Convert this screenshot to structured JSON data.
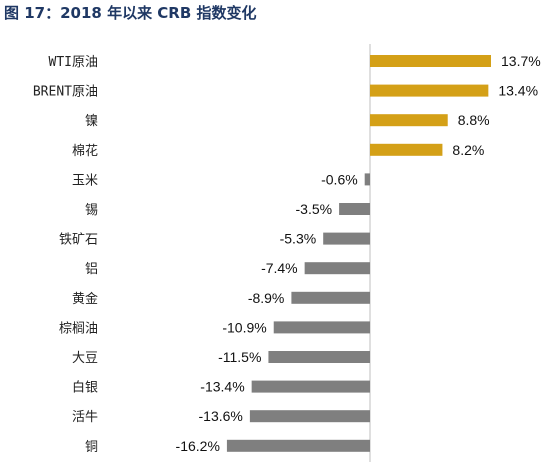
{
  "title": "图 17：2018 年以来 CRB 指数变化",
  "colors": {
    "positive": "#d4a017",
    "negative": "#7f7f7f",
    "axis": "#bfbfbf",
    "title": "#1f3864"
  },
  "chart_data": {
    "type": "bar",
    "orientation": "horizontal",
    "title": "图 17：2018 年以来 CRB 指数变化",
    "unit": "%",
    "categories": [
      "WTI原油",
      "BRENT原油",
      "镍",
      "棉花",
      "玉米",
      "锡",
      "铁矿石",
      "铝",
      "黄金",
      "棕榈油",
      "大豆",
      "白银",
      "活牛",
      "铜"
    ],
    "values": [
      13.7,
      13.4,
      8.8,
      8.2,
      -0.6,
      -3.5,
      -5.3,
      -7.4,
      -8.9,
      -10.9,
      -11.5,
      -13.4,
      -13.6,
      -16.2
    ],
    "value_labels": [
      "13.7%",
      "13.4%",
      "8.8%",
      "8.2%",
      "-0.6%",
      "-3.5%",
      "-5.3%",
      "-7.4%",
      "-8.9%",
      "-10.9%",
      "-11.5%",
      "-13.4%",
      "-13.6%",
      "-16.2%"
    ],
    "xlim": [
      -16.2,
      13.7
    ],
    "grid": false,
    "legend": "none"
  }
}
